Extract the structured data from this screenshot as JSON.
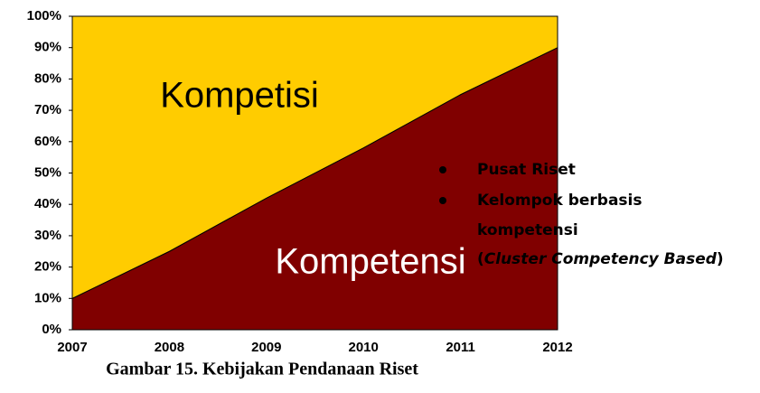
{
  "chart_data": {
    "type": "area",
    "stacked": true,
    "x": [
      2007,
      2008,
      2009,
      2010,
      2011,
      2012
    ],
    "xlim": [
      2007,
      2012
    ],
    "xticks": [
      2007,
      2008,
      2009,
      2010,
      2011,
      2012
    ],
    "ylim": [
      0,
      100
    ],
    "yticks": [
      {
        "value": 0,
        "label": "0%"
      },
      {
        "value": 10,
        "label": "10%"
      },
      {
        "value": 20,
        "label": "20%"
      },
      {
        "value": 30,
        "label": "30%"
      },
      {
        "value": 40,
        "label": "40%"
      },
      {
        "value": 50,
        "label": "50%"
      },
      {
        "value": 60,
        "label": "60%"
      },
      {
        "value": 70,
        "label": "70%"
      },
      {
        "value": 80,
        "label": "80%"
      },
      {
        "value": 90,
        "label": "90%"
      },
      {
        "value": 100,
        "label": "100%"
      }
    ],
    "series": [
      {
        "name": "Kompetensi",
        "color": "#800000",
        "values": [
          10,
          25,
          42,
          58,
          75,
          90
        ]
      },
      {
        "name": "Kompetisi",
        "color": "#ffcc00",
        "values": [
          90,
          75,
          58,
          42,
          25,
          10
        ]
      }
    ],
    "annotations": {
      "bullets": [
        "Pusat Riset",
        "Kelompok berbasis"
      ],
      "continuation": "kompetensi",
      "open": "(",
      "italic": "Cluster Competency Based",
      "close": ")"
    },
    "caption": "Gambar 15. Kebijakan Pendanaan Riset"
  }
}
